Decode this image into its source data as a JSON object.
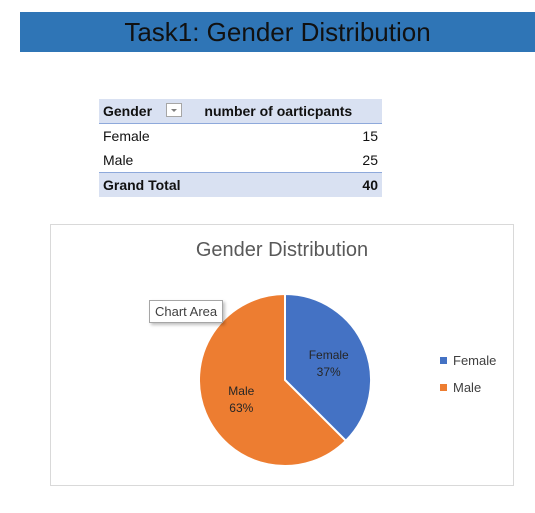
{
  "header": {
    "title": "Task1: Gender Distribution"
  },
  "pivot": {
    "col1_header": "Gender",
    "col2_header": "number of oarticpants",
    "rows": [
      {
        "label": "Female",
        "value": "15"
      },
      {
        "label": "Male",
        "value": "25"
      }
    ],
    "total_label": "Grand Total",
    "total_value": "40"
  },
  "chart_tooltip": "Chart Area",
  "chart_data": {
    "type": "pie",
    "title": "Gender Distribution",
    "categories": [
      "Female",
      "Male"
    ],
    "values": [
      15,
      25
    ],
    "data_labels": [
      {
        "name": "Female",
        "pct": "37%"
      },
      {
        "name": "Male",
        "pct": "63%"
      }
    ],
    "colors": [
      "#4472c4",
      "#ed7d31"
    ],
    "legend": "right"
  }
}
